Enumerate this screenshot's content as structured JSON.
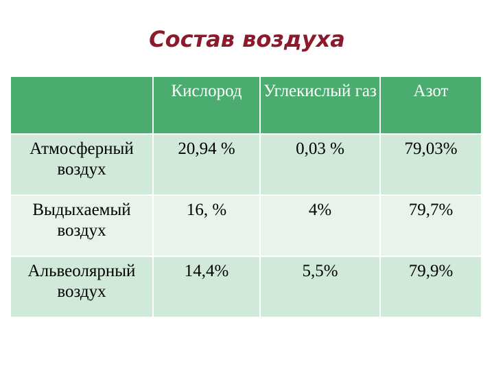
{
  "title": "Состав воздуха",
  "table": {
    "columns": [
      "Кислород",
      "Углекислый газ",
      "Азот"
    ],
    "rows": [
      {
        "label": "Атмосферный воздух",
        "values": [
          "20,94 %",
          "0,03 %",
          "79,03%"
        ]
      },
      {
        "label": "Выдыхаемый воздух",
        "values": [
          "16, %",
          "4%",
          "79,7%"
        ]
      },
      {
        "label": "Альвеолярный воздух",
        "values": [
          "14,4%",
          "5,5%",
          "79,9%"
        ]
      }
    ]
  }
}
